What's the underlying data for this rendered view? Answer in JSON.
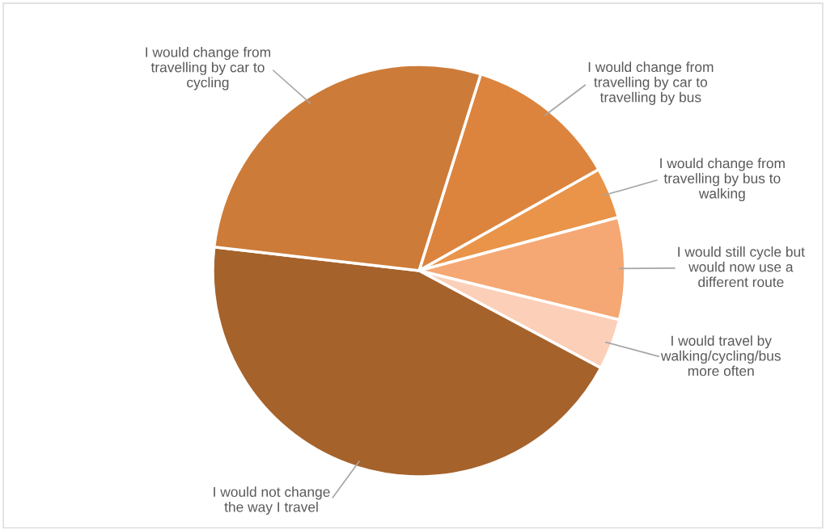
{
  "chart_data": {
    "type": "pie",
    "categories": [
      "I would change from\ntravelling by car to\ntravelling by bus",
      "I would change from\ntravelling by bus to\nwalking",
      "I would still cycle but\nwould now use a\ndifferent route",
      "I would travel by\nwalking/cycling/bus\nmore often",
      "I would not change\nthe way I travel",
      "I would change from\ntravelling by car to\ncycling"
    ],
    "values": [
      12,
      4,
      8,
      4,
      44,
      28
    ],
    "colors": [
      "#dc843e",
      "#e99449",
      "#f5a873",
      "#fbcfb8",
      "#a5622b",
      "#cd7b38"
    ],
    "legend": false
  }
}
